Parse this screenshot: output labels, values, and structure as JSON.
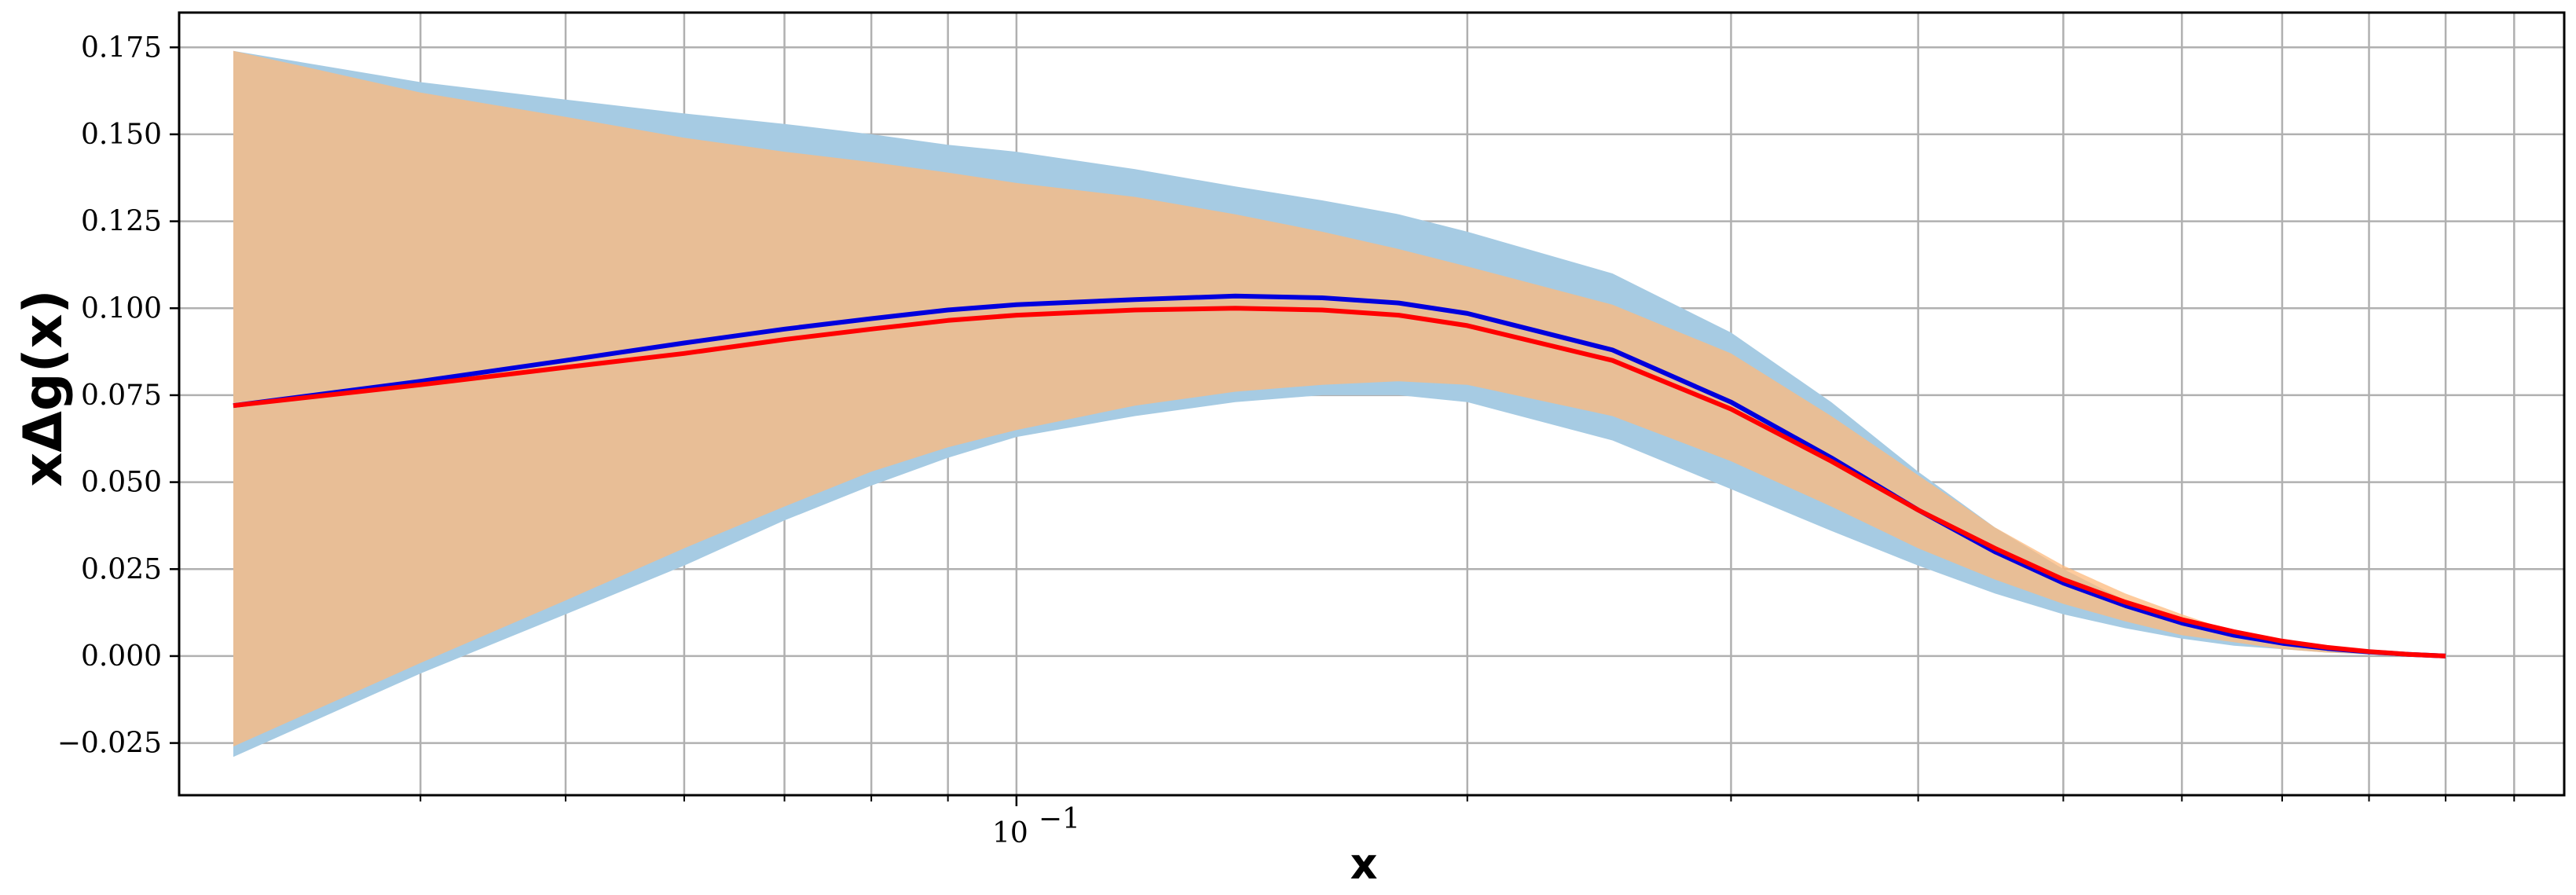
{
  "chart_data": {
    "type": "area",
    "title": "",
    "xlabel": "x",
    "ylabel": "xΔg(x)",
    "xscale": "log",
    "xlim": [
      0.0276,
      1.08
    ],
    "ylim": [
      -0.04,
      0.185
    ],
    "grid": true,
    "legend": "none",
    "x_major_ticks": [
      {
        "value": 0.1,
        "label": "10",
        "exp": "−1"
      }
    ],
    "x_minor_ticks": [
      0.04,
      0.05,
      0.06,
      0.07,
      0.08,
      0.09,
      0.2,
      0.3,
      0.4,
      0.5,
      0.6,
      0.7,
      0.8,
      0.9,
      1.0
    ],
    "y_ticks": [
      {
        "value": -0.025,
        "label": "−0.025"
      },
      {
        "value": 0.0,
        "label": "0.000"
      },
      {
        "value": 0.025,
        "label": "0.025"
      },
      {
        "value": 0.05,
        "label": "0.050"
      },
      {
        "value": 0.075,
        "label": "0.075"
      },
      {
        "value": 0.1,
        "label": "0.100"
      },
      {
        "value": 0.125,
        "label": "0.125"
      },
      {
        "value": 0.15,
        "label": "0.150"
      },
      {
        "value": 0.175,
        "label": "0.175"
      }
    ],
    "x": [
      0.03,
      0.04,
      0.05,
      0.06,
      0.07,
      0.08,
      0.09,
      0.1,
      0.12,
      0.14,
      0.16,
      0.18,
      0.2,
      0.25,
      0.3,
      0.35,
      0.4,
      0.45,
      0.5,
      0.55,
      0.6,
      0.65,
      0.7,
      0.75,
      0.8,
      0.85,
      0.9
    ],
    "bands": [
      {
        "color": "#a6cbe3",
        "upper": [
          0.174,
          0.165,
          0.16,
          0.156,
          0.153,
          0.15,
          0.147,
          0.145,
          0.14,
          0.135,
          0.131,
          0.127,
          0.122,
          0.11,
          0.093,
          0.073,
          0.053,
          0.037,
          0.025,
          0.016,
          0.01,
          0.006,
          0.004,
          0.002,
          0.001,
          0.0005,
          0.0
        ],
        "lower": [
          -0.029,
          -0.005,
          0.012,
          0.026,
          0.039,
          0.049,
          0.057,
          0.063,
          0.069,
          0.073,
          0.075,
          0.075,
          0.073,
          0.062,
          0.048,
          0.036,
          0.026,
          0.018,
          0.012,
          0.008,
          0.005,
          0.003,
          0.002,
          0.001,
          0.0005,
          0.0002,
          0.0
        ]
      },
      {
        "color": "#fdb97c",
        "upper": [
          0.174,
          0.162,
          0.155,
          0.149,
          0.145,
          0.142,
          0.139,
          0.136,
          0.132,
          0.127,
          0.122,
          0.117,
          0.112,
          0.101,
          0.087,
          0.069,
          0.052,
          0.037,
          0.026,
          0.018,
          0.012,
          0.007,
          0.004,
          0.002,
          0.001,
          0.0005,
          0.0
        ],
        "lower": [
          -0.026,
          -0.002,
          0.016,
          0.031,
          0.043,
          0.053,
          0.06,
          0.065,
          0.072,
          0.076,
          0.078,
          0.079,
          0.078,
          0.069,
          0.056,
          0.043,
          0.031,
          0.022,
          0.015,
          0.01,
          0.006,
          0.004,
          0.002,
          0.001,
          0.0006,
          0.0002,
          0.0
        ]
      }
    ],
    "series": [
      {
        "color": "#0000dd",
        "values": [
          0.072,
          0.079,
          0.085,
          0.09,
          0.094,
          0.097,
          0.0995,
          0.101,
          0.1025,
          0.1035,
          0.103,
          0.1015,
          0.0985,
          0.088,
          0.073,
          0.057,
          0.042,
          0.03,
          0.021,
          0.0145,
          0.0095,
          0.006,
          0.0037,
          0.0022,
          0.0012,
          0.0005,
          0.0
        ]
      },
      {
        "color": "#ff0000",
        "values": [
          0.072,
          0.078,
          0.083,
          0.087,
          0.091,
          0.094,
          0.0965,
          0.098,
          0.0995,
          0.1,
          0.0995,
          0.098,
          0.095,
          0.085,
          0.071,
          0.056,
          0.042,
          0.031,
          0.022,
          0.0155,
          0.0105,
          0.007,
          0.0043,
          0.0025,
          0.0013,
          0.0005,
          0.0
        ]
      }
    ]
  }
}
